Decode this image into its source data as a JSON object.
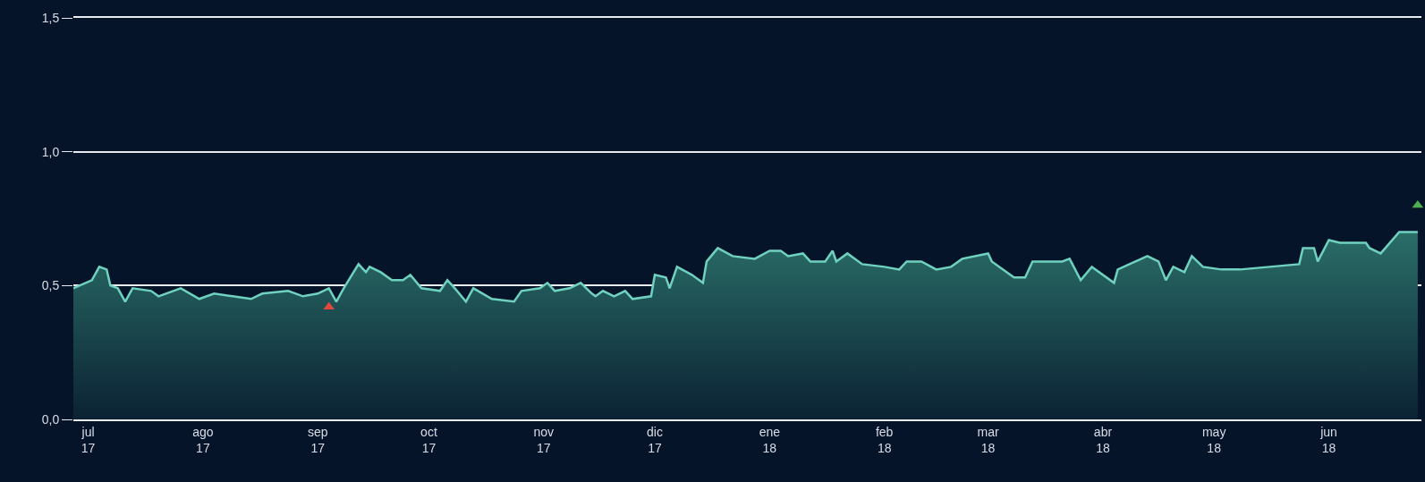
{
  "chart_data": {
    "type": "area",
    "grid": "y",
    "x": [
      "2017-06-27",
      "2017-07-02",
      "2017-07-04",
      "2017-07-06",
      "2017-07-07",
      "2017-07-09",
      "2017-07-11",
      "2017-07-13",
      "2017-07-18",
      "2017-07-20",
      "2017-07-26",
      "2017-07-31",
      "2017-08-04",
      "2017-08-09",
      "2017-08-14",
      "2017-08-17",
      "2017-08-24",
      "2017-08-28",
      "2017-09-01",
      "2017-09-04",
      "2017-09-06",
      "2017-09-08",
      "2017-09-12",
      "2017-09-14",
      "2017-09-15",
      "2017-09-18",
      "2017-09-21",
      "2017-09-24",
      "2017-09-26",
      "2017-09-29",
      "2017-10-04",
      "2017-10-06",
      "2017-10-08",
      "2017-10-11",
      "2017-10-13",
      "2017-10-18",
      "2017-10-24",
      "2017-10-26",
      "2017-10-31",
      "2017-11-02",
      "2017-11-04",
      "2017-11-08",
      "2017-11-11",
      "2017-11-14",
      "2017-11-15",
      "2017-11-17",
      "2017-11-20",
      "2017-11-23",
      "2017-11-25",
      "2017-11-30",
      "2017-12-01",
      "2017-12-04",
      "2017-12-05",
      "2017-12-07",
      "2017-12-11",
      "2017-12-14",
      "2017-12-15",
      "2017-12-18",
      "2017-12-22",
      "2017-12-28",
      "2018-01-01",
      "2018-01-04",
      "2018-01-06",
      "2018-01-10",
      "2018-01-12",
      "2018-01-16",
      "2018-01-18",
      "2018-01-19",
      "2018-01-22",
      "2018-01-26",
      "2018-02-01",
      "2018-02-05",
      "2018-02-07",
      "2018-02-11",
      "2018-02-15",
      "2018-02-19",
      "2018-02-22",
      "2018-03-01",
      "2018-03-02",
      "2018-03-08",
      "2018-03-11",
      "2018-03-13",
      "2018-03-21",
      "2018-03-23",
      "2018-03-26",
      "2018-03-29",
      "2018-04-04",
      "2018-04-05",
      "2018-04-13",
      "2018-04-16",
      "2018-04-18",
      "2018-04-20",
      "2018-04-23",
      "2018-04-25",
      "2018-04-28",
      "2018-05-03",
      "2018-05-08",
      "2018-05-16",
      "2018-05-24",
      "2018-05-25",
      "2018-05-28",
      "2018-05-29",
      "2018-06-01",
      "2018-06-04",
      "2018-06-11",
      "2018-06-12",
      "2018-06-15",
      "2018-06-20",
      "2018-06-25"
    ],
    "series": [
      {
        "color": "#6fd1bf",
        "values": [
          0.49,
          0.52,
          0.57,
          0.56,
          0.5,
          0.49,
          0.44,
          0.49,
          0.48,
          0.46,
          0.49,
          0.45,
          0.47,
          0.46,
          0.45,
          0.47,
          0.48,
          0.46,
          0.47,
          0.49,
          0.44,
          0.49,
          0.58,
          0.55,
          0.57,
          0.55,
          0.52,
          0.52,
          0.54,
          0.49,
          0.48,
          0.52,
          0.49,
          0.44,
          0.49,
          0.45,
          0.44,
          0.48,
          0.49,
          0.51,
          0.48,
          0.49,
          0.51,
          0.47,
          0.46,
          0.48,
          0.46,
          0.48,
          0.45,
          0.46,
          0.54,
          0.53,
          0.49,
          0.57,
          0.54,
          0.51,
          0.59,
          0.64,
          0.61,
          0.6,
          0.63,
          0.63,
          0.61,
          0.62,
          0.59,
          0.59,
          0.63,
          0.59,
          0.62,
          0.58,
          0.57,
          0.56,
          0.59,
          0.59,
          0.56,
          0.57,
          0.6,
          0.62,
          0.59,
          0.53,
          0.53,
          0.59,
          0.59,
          0.6,
          0.52,
          0.57,
          0.51,
          0.56,
          0.61,
          0.59,
          0.52,
          0.57,
          0.55,
          0.61,
          0.57,
          0.56,
          0.56,
          0.57,
          0.58,
          0.64,
          0.64,
          0.59,
          0.67,
          0.66,
          0.66,
          0.64,
          0.62,
          0.7,
          0.7
        ]
      },
      {
        "type": "scatter",
        "marker": "triangle",
        "x": [
          "2017-09-04",
          "2018-06-25"
        ],
        "values": [
          0.42,
          0.8
        ],
        "colors": [
          "#e0493c",
          "#4caf50"
        ]
      }
    ],
    "xlim": [
      "2017-06-27",
      "2018-06-26"
    ],
    "xticks": [
      {
        "value": "2017-07-01",
        "label": "jul\n17"
      },
      {
        "value": "2017-08-01",
        "label": "ago\n17"
      },
      {
        "value": "2017-09-01",
        "label": "sep\n17"
      },
      {
        "value": "2017-10-01",
        "label": "oct\n17"
      },
      {
        "value": "2017-11-01",
        "label": "nov\n17"
      },
      {
        "value": "2017-12-01",
        "label": "dic\n17"
      },
      {
        "value": "2018-01-01",
        "label": "ene\n18"
      },
      {
        "value": "2018-02-01",
        "label": "feb\n18"
      },
      {
        "value": "2018-03-01",
        "label": "mar\n18"
      },
      {
        "value": "2018-04-01",
        "label": "abr\n18"
      },
      {
        "value": "2018-05-01",
        "label": "may\n18"
      },
      {
        "value": "2018-06-01",
        "label": "jun\n18"
      }
    ],
    "ylim": [
      0,
      1.5
    ],
    "yticks": [
      {
        "value": 0,
        "label": "0,0"
      },
      {
        "value": 0.5,
        "label": "0,5"
      },
      {
        "value": 1.0,
        "label": "1,0"
      },
      {
        "value": 1.5,
        "label": "1,5"
      }
    ]
  }
}
